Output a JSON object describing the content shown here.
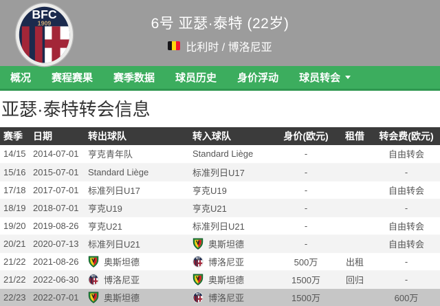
{
  "header": {
    "club_logo": "bologna-crest",
    "crest_text": "BFC",
    "crest_year": "1909",
    "title": "6号 亚瑟·泰特 (22岁)",
    "flag": "belgium-flag",
    "subtitle": "比利时 / 博洛尼亚"
  },
  "nav": {
    "items": [
      {
        "label": "概况",
        "has_dropdown": false
      },
      {
        "label": "赛程赛果",
        "has_dropdown": false
      },
      {
        "label": "赛季数据",
        "has_dropdown": false
      },
      {
        "label": "球员历史",
        "has_dropdown": false
      },
      {
        "label": "身价浮动",
        "has_dropdown": false
      },
      {
        "label": "球员转会",
        "has_dropdown": true
      }
    ]
  },
  "section": {
    "title": "亚瑟·泰特转会信息"
  },
  "table": {
    "columns": [
      "赛季",
      "日期",
      "转出球队",
      "转入球队",
      "身价(欧元)",
      "租借",
      "转会费(欧元)"
    ],
    "rows": [
      {
        "season": "14/15",
        "date": "2014-07-01",
        "from": {
          "logo": "",
          "name": "亨克青年队"
        },
        "to": {
          "logo": "",
          "name": "Standard Liège"
        },
        "value": "-",
        "loan": "",
        "fee": "自由转会",
        "highlight": false
      },
      {
        "season": "15/16",
        "date": "2015-07-01",
        "from": {
          "logo": "",
          "name": "Standard Liège"
        },
        "to": {
          "logo": "",
          "name": "标准列日U17"
        },
        "value": "-",
        "loan": "",
        "fee": "-",
        "highlight": false
      },
      {
        "season": "17/18",
        "date": "2017-07-01",
        "from": {
          "logo": "",
          "name": "标准列日U17"
        },
        "to": {
          "logo": "",
          "name": "亨克U19"
        },
        "value": "-",
        "loan": "",
        "fee": "自由转会",
        "highlight": false
      },
      {
        "season": "18/19",
        "date": "2018-07-01",
        "from": {
          "logo": "",
          "name": "亨克U19"
        },
        "to": {
          "logo": "",
          "name": "亨克U21"
        },
        "value": "-",
        "loan": "",
        "fee": "-",
        "highlight": false
      },
      {
        "season": "19/20",
        "date": "2019-08-26",
        "from": {
          "logo": "",
          "name": "亨克U21"
        },
        "to": {
          "logo": "",
          "name": "标准列日U21"
        },
        "value": "-",
        "loan": "",
        "fee": "自由转会",
        "highlight": false
      },
      {
        "season": "20/21",
        "date": "2020-07-13",
        "from": {
          "logo": "",
          "name": "标准列日U21"
        },
        "to": {
          "logo": "oostende",
          "name": "奥斯坦德"
        },
        "value": "-",
        "loan": "",
        "fee": "自由转会",
        "highlight": false
      },
      {
        "season": "21/22",
        "date": "2021-08-26",
        "from": {
          "logo": "oostende",
          "name": "奥斯坦德"
        },
        "to": {
          "logo": "bologna",
          "name": "博洛尼亚"
        },
        "value": "500万",
        "loan": "出租",
        "fee": "-",
        "highlight": false
      },
      {
        "season": "21/22",
        "date": "2022-06-30",
        "from": {
          "logo": "bologna",
          "name": "博洛尼亚"
        },
        "to": {
          "logo": "oostende",
          "name": "奥斯坦德"
        },
        "value": "1500万",
        "loan": "回归",
        "fee": "-",
        "highlight": false
      },
      {
        "season": "22/23",
        "date": "2022-07-01",
        "from": {
          "logo": "oostende",
          "name": "奥斯坦德"
        },
        "to": {
          "logo": "bologna",
          "name": "博洛尼亚"
        },
        "value": "1500万",
        "loan": "",
        "fee": "600万",
        "highlight": true
      }
    ]
  },
  "colors": {
    "header_bg": "#9c9c9c",
    "nav_green": "#3cad5e",
    "nav_border_green": "#2f9750",
    "table_header_bg": "#3b3b3b",
    "alt_row_bg": "#f3f3f3",
    "highlight_row_bg": "#c6c6c6",
    "bologna_navy": "#1b2a4d",
    "bologna_red": "#a32638",
    "oostende_green": "#1f8c3c",
    "oostende_red": "#d42027",
    "oostende_yellow": "#f8d418",
    "flag_black": "#17161a",
    "flag_yellow": "#ffd90c",
    "flag_red": "#f31830"
  }
}
